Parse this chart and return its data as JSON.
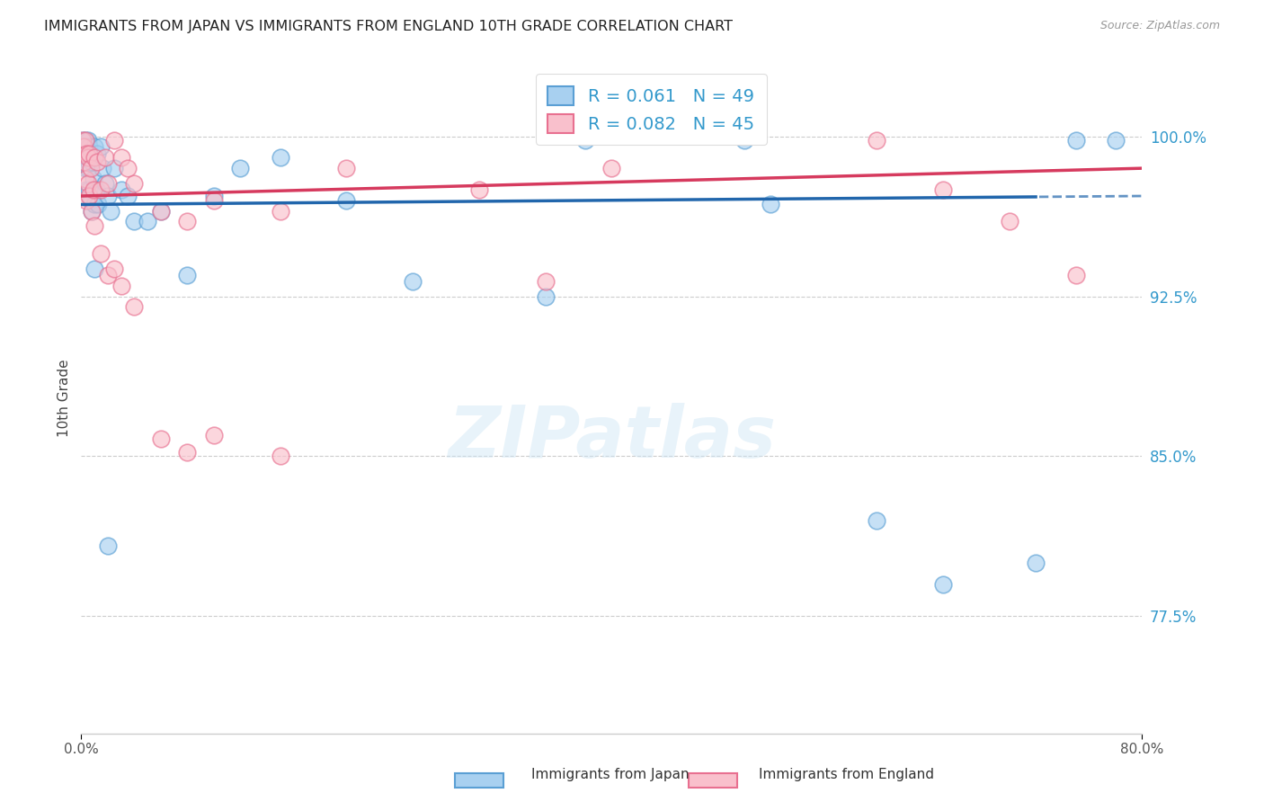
{
  "title": "IMMIGRANTS FROM JAPAN VS IMMIGRANTS FROM ENGLAND 10TH GRADE CORRELATION CHART",
  "source": "Source: ZipAtlas.com",
  "ylabel": "10th Grade",
  "x_label_bottom_left": "0.0%",
  "x_label_bottom_right": "80.0%",
  "y_tick_labels": [
    "100.0%",
    "92.5%",
    "85.0%",
    "77.5%"
  ],
  "y_tick_values": [
    1.0,
    0.925,
    0.85,
    0.775
  ],
  "x_min": 0.0,
  "x_max": 0.8,
  "y_min": 0.72,
  "y_max": 1.035,
  "japan_fill_color": "#a8d0f0",
  "japan_edge_color": "#5a9fd4",
  "england_fill_color": "#f9c0cc",
  "england_edge_color": "#e87090",
  "japan_line_color": "#2166ac",
  "england_line_color": "#d63a5e",
  "right_tick_color": "#3399cc",
  "legend_japan_label": "Immigrants from Japan",
  "legend_england_label": "Immigrants from England",
  "R_japan": "0.061",
  "N_japan": "49",
  "R_england": "0.082",
  "N_england": "45",
  "watermark_text": "ZIPatlas",
  "grid_color": "#cccccc",
  "background_color": "#ffffff",
  "japan_points_x": [
    0.001,
    0.002,
    0.002,
    0.003,
    0.003,
    0.004,
    0.004,
    0.005,
    0.005,
    0.006,
    0.006,
    0.007,
    0.007,
    0.008,
    0.008,
    0.009,
    0.01,
    0.01,
    0.011,
    0.012,
    0.013,
    0.015,
    0.016,
    0.018,
    0.02,
    0.022,
    0.025,
    0.03,
    0.035,
    0.04,
    0.05,
    0.06,
    0.08,
    0.1,
    0.12,
    0.15,
    0.2,
    0.25,
    0.35,
    0.38,
    0.5,
    0.52,
    0.6,
    0.65,
    0.72,
    0.75,
    0.78,
    0.01,
    0.02
  ],
  "japan_points_y": [
    0.998,
    0.995,
    0.99,
    0.998,
    0.985,
    0.992,
    0.975,
    0.998,
    0.985,
    0.995,
    0.975,
    0.99,
    0.97,
    0.988,
    0.965,
    0.98,
    0.995,
    0.968,
    0.975,
    0.992,
    0.968,
    0.995,
    0.985,
    0.978,
    0.972,
    0.965,
    0.985,
    0.975,
    0.972,
    0.96,
    0.96,
    0.965,
    0.935,
    0.972,
    0.985,
    0.99,
    0.97,
    0.932,
    0.925,
    0.998,
    0.998,
    0.968,
    0.82,
    0.79,
    0.8,
    0.998,
    0.998,
    0.938,
    0.808
  ],
  "england_points_x": [
    0.001,
    0.002,
    0.002,
    0.003,
    0.003,
    0.004,
    0.004,
    0.005,
    0.005,
    0.006,
    0.006,
    0.007,
    0.008,
    0.009,
    0.01,
    0.012,
    0.015,
    0.018,
    0.02,
    0.025,
    0.03,
    0.035,
    0.04,
    0.06,
    0.08,
    0.1,
    0.15,
    0.2,
    0.3,
    0.35,
    0.4,
    0.6,
    0.65,
    0.7,
    0.75,
    0.01,
    0.015,
    0.02,
    0.025,
    0.03,
    0.04,
    0.06,
    0.08,
    0.1,
    0.15
  ],
  "england_points_y": [
    0.998,
    0.995,
    0.988,
    0.998,
    0.98,
    0.992,
    0.97,
    0.99,
    0.978,
    0.992,
    0.972,
    0.985,
    0.965,
    0.975,
    0.99,
    0.988,
    0.975,
    0.99,
    0.978,
    0.998,
    0.99,
    0.985,
    0.978,
    0.965,
    0.96,
    0.97,
    0.965,
    0.985,
    0.975,
    0.932,
    0.985,
    0.998,
    0.975,
    0.96,
    0.935,
    0.958,
    0.945,
    0.935,
    0.938,
    0.93,
    0.92,
    0.858,
    0.852,
    0.86,
    0.85
  ]
}
